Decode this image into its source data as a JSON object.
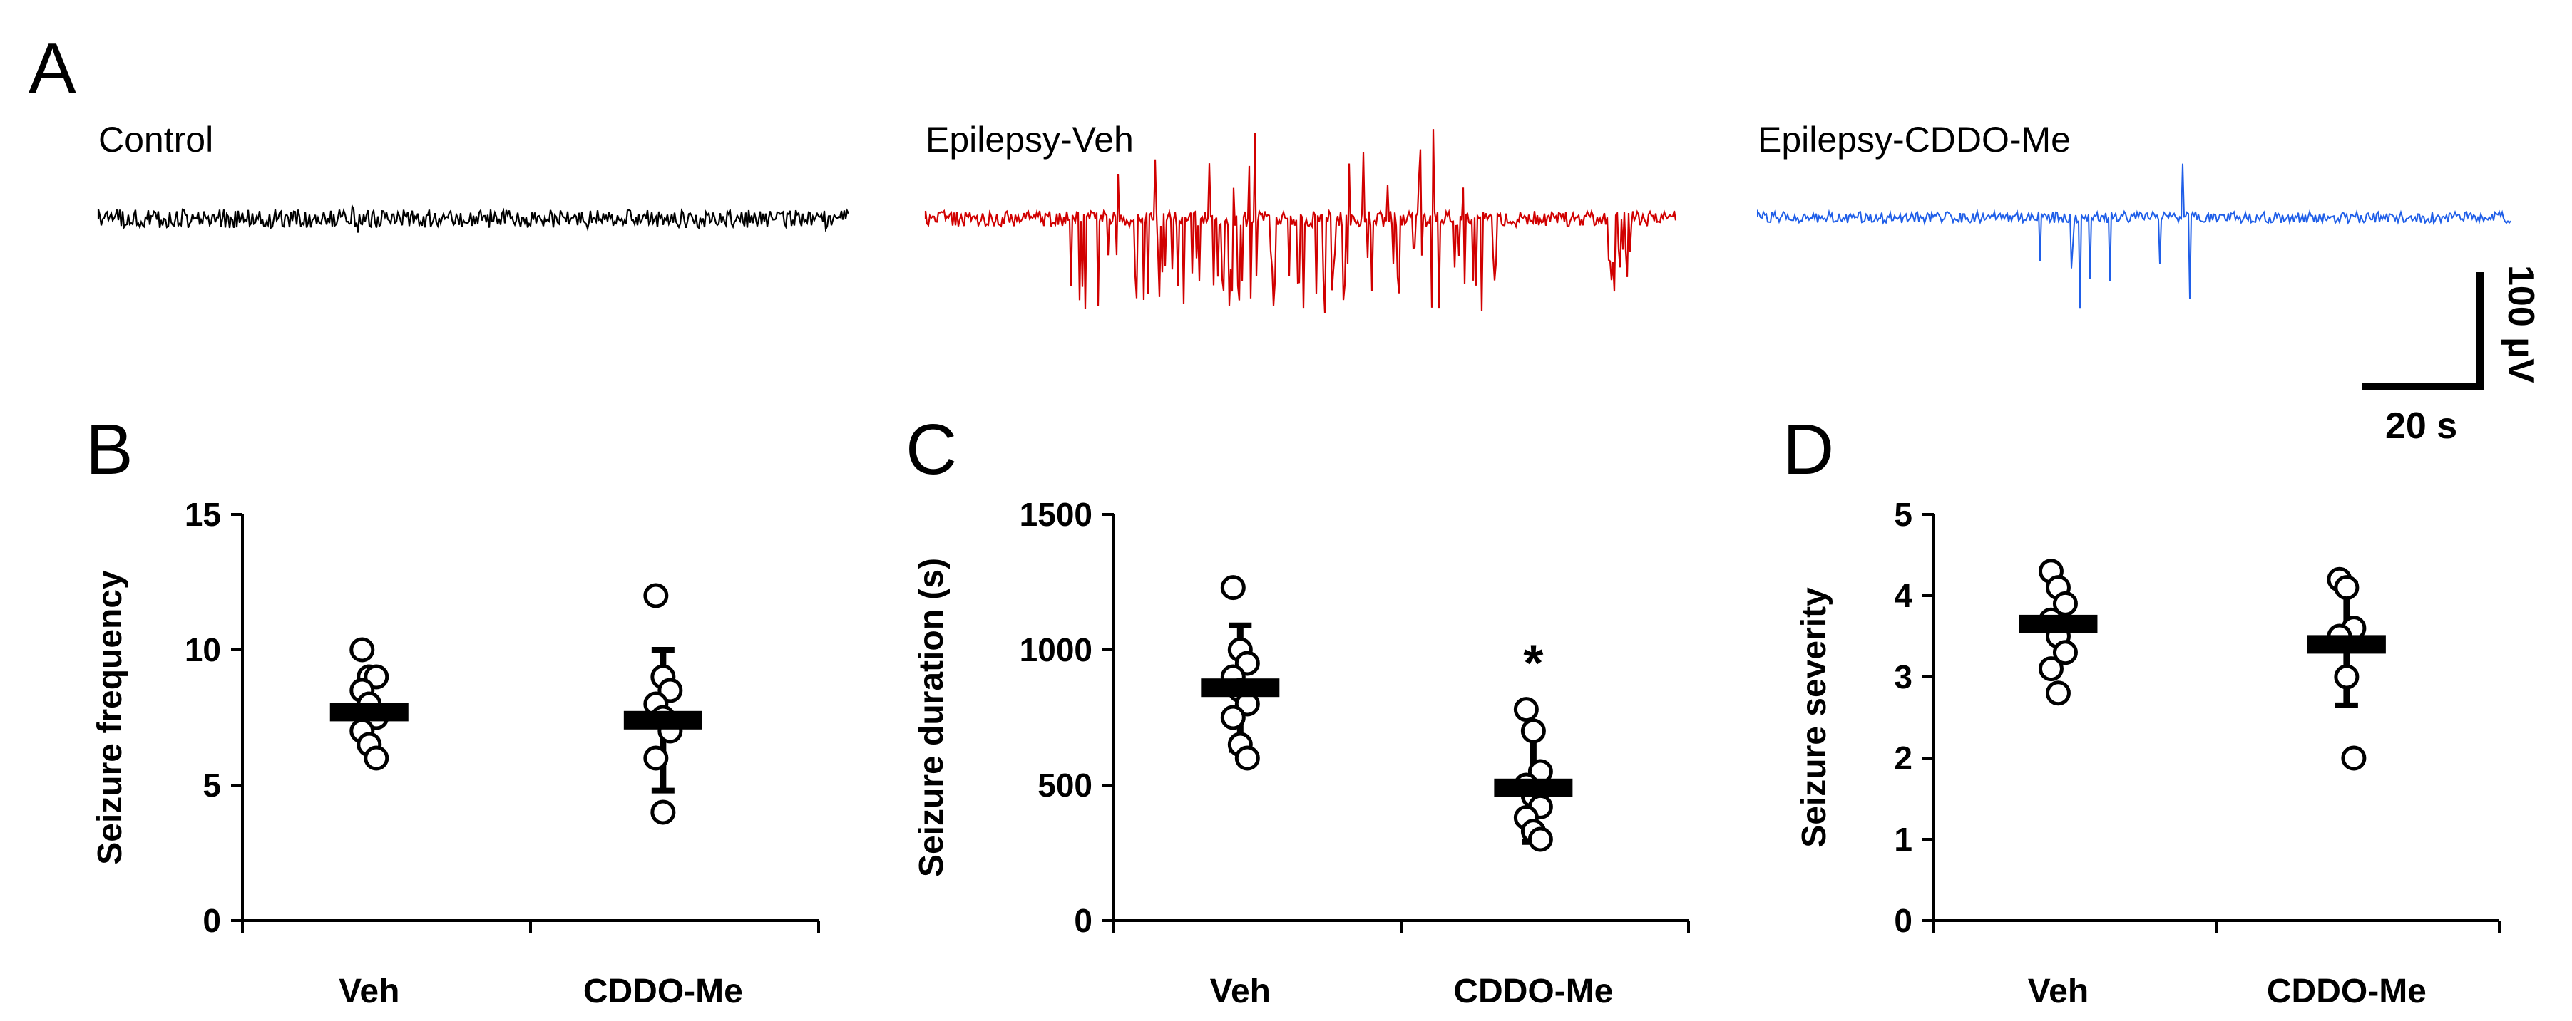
{
  "panel_a": {
    "letter": "A",
    "traces": [
      {
        "label": "Control",
        "color": "#000000"
      },
      {
        "label": "Epilepsy-Veh",
        "color": "#d10000"
      },
      {
        "label": "Epilepsy-CDDO-Me",
        "color": "#1f5ee8"
      }
    ],
    "scale_bar": {
      "vertical_label": "100 µV",
      "horizontal_label": "20 s"
    }
  },
  "chart_data": [
    {
      "type": "scatter",
      "panel": "B",
      "title": "",
      "xlabel": "",
      "ylabel": "Seizure frequency",
      "categories": [
        "Veh",
        "CDDO-Me"
      ],
      "ylim": [
        0,
        15
      ],
      "yticks": [
        "0",
        "5",
        "10",
        "15"
      ],
      "series": [
        {
          "name": "Veh",
          "points": [
            10,
            9,
            9,
            8.5,
            8,
            7.5,
            7,
            6.5,
            6
          ],
          "mean": 7.7,
          "sd": 1.2
        },
        {
          "name": "CDDO-Me",
          "points": [
            12,
            9,
            8.5,
            8,
            7.5,
            7,
            6,
            4
          ],
          "mean": 7.4,
          "sd": 2.6
        }
      ],
      "annotation": ""
    },
    {
      "type": "scatter",
      "panel": "C",
      "title": "",
      "xlabel": "",
      "ylabel": "Seizure duration (s)",
      "categories": [
        "Veh",
        "CDDO-Me"
      ],
      "ylim": [
        0,
        1500
      ],
      "yticks": [
        "0",
        "500",
        "1000",
        "1500"
      ],
      "series": [
        {
          "name": "Veh",
          "points": [
            1230,
            1000,
            950,
            900,
            850,
            800,
            750,
            650,
            600
          ],
          "mean": 860,
          "sd": 230
        },
        {
          "name": "CDDO-Me",
          "points": [
            780,
            700,
            550,
            500,
            460,
            420,
            380,
            330,
            300
          ],
          "mean": 490,
          "sd": 200
        }
      ],
      "annotation": "*"
    },
    {
      "type": "scatter",
      "panel": "D",
      "title": "",
      "xlabel": "",
      "ylabel": "Seizure severity",
      "categories": [
        "Veh",
        "CDDO-Me"
      ],
      "ylim": [
        0,
        5
      ],
      "yticks": [
        "0",
        "1",
        "2",
        "3",
        "4",
        "5"
      ],
      "series": [
        {
          "name": "Veh",
          "points": [
            4.3,
            4.1,
            3.9,
            3.7,
            3.5,
            3.3,
            3.1,
            2.8
          ],
          "mean": 3.65,
          "sd": 0.45
        },
        {
          "name": "CDDO-Me",
          "points": [
            4.2,
            4.1,
            3.6,
            3.5,
            3.0,
            2.0
          ],
          "mean": 3.4,
          "sd": 0.75
        }
      ],
      "annotation": ""
    }
  ]
}
